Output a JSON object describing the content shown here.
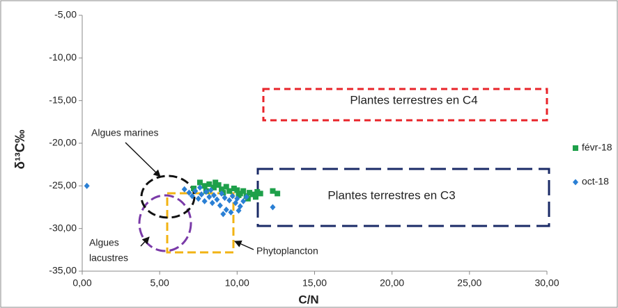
{
  "chart_data": {
    "type": "scatter",
    "x_label": "C/N",
    "y_label": "δ¹³C‰",
    "xlim": [
      0,
      30
    ],
    "ylim": [
      -35,
      -5
    ],
    "xticks": [
      {
        "value": 0,
        "label": "0,00"
      },
      {
        "value": 5,
        "label": "5,00"
      },
      {
        "value": 10,
        "label": "10,00"
      },
      {
        "value": 15,
        "label": "15,00"
      },
      {
        "value": 20,
        "label": "20,00"
      },
      {
        "value": 25,
        "label": "25,00"
      },
      {
        "value": 30,
        "label": "30,00"
      }
    ],
    "yticks": [
      {
        "value": -5,
        "label": "-5,00"
      },
      {
        "value": -10,
        "label": "-10,00"
      },
      {
        "value": -15,
        "label": "-15,00"
      },
      {
        "value": -20,
        "label": "-20,00"
      },
      {
        "value": -25,
        "label": "-25,00"
      },
      {
        "value": -30,
        "label": "-30,00"
      },
      {
        "value": -35,
        "label": "-35,00"
      }
    ],
    "grid": false,
    "legend_position": "right",
    "series": [
      {
        "name": "févr-18",
        "color": "#1ea04a",
        "marker": "square",
        "x": [
          7.6,
          7.9,
          8.2,
          8.5,
          8.8,
          9.0,
          9.3,
          9.5,
          9.8,
          10.0,
          10.2,
          10.4,
          10.6,
          10.8,
          11.0,
          11.2,
          11.5,
          12.3,
          12.6,
          7.2,
          8.0,
          9.1,
          10.1,
          10.7,
          11.3,
          8.6
        ],
        "values": [
          -24.6,
          -25.0,
          -24.8,
          -25.2,
          -24.9,
          -25.4,
          -25.1,
          -25.6,
          -25.3,
          -25.5,
          -25.9,
          -25.6,
          -26.2,
          -25.8,
          -26.0,
          -26.3,
          -25.9,
          -25.6,
          -25.9,
          -25.3,
          -25.6,
          -25.8,
          -26.1,
          -26.5,
          -25.7,
          -24.6
        ]
      },
      {
        "name": "oct-18",
        "color": "#2a7fd4",
        "marker": "diamond",
        "x": [
          0.3,
          6.6,
          6.9,
          7.1,
          7.3,
          7.5,
          7.7,
          7.9,
          8.0,
          8.2,
          8.4,
          8.5,
          8.7,
          8.9,
          9.0,
          9.2,
          9.3,
          9.5,
          9.6,
          9.7,
          9.9,
          10.0,
          10.2,
          10.4,
          10.6,
          9.1,
          8.3,
          7.6,
          12.3,
          10.1
        ],
        "values": [
          -25.0,
          -25.4,
          -25.8,
          -26.2,
          -25.6,
          -26.5,
          -26.0,
          -26.8,
          -25.7,
          -26.3,
          -27.0,
          -26.1,
          -26.6,
          -27.3,
          -25.9,
          -26.4,
          -27.8,
          -26.7,
          -28.1,
          -26.2,
          -27.0,
          -26.5,
          -27.4,
          -26.8,
          -26.3,
          -28.3,
          -25.5,
          -25.2,
          -27.5,
          -27.9
        ]
      }
    ],
    "annotations": {
      "c4": "Plantes terrestres en C4",
      "c3": "Plantes terrestres en C3",
      "marines": "Algues marines",
      "lacustres_1": "Algues",
      "lacustres_2": "lacustres",
      "phyto": "Phytoplancton"
    }
  }
}
